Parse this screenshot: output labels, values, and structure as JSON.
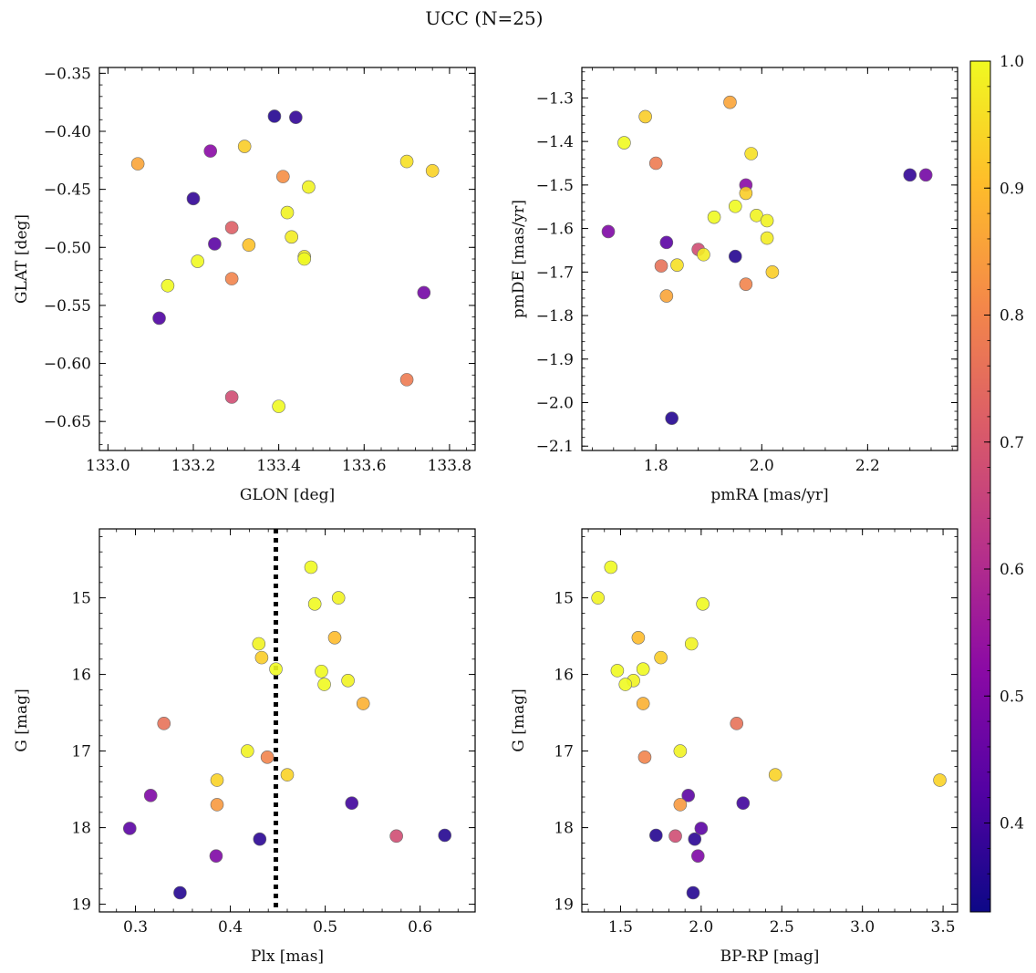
{
  "figure": {
    "title": "UCC (N=25)"
  },
  "colorbar": {
    "min": 0.33,
    "max": 1.0,
    "ticks": [
      0.4,
      0.5,
      0.6,
      0.7,
      0.8,
      0.9,
      1.0
    ],
    "tick_labels": [
      "0.4",
      "0.5",
      "0.6",
      "0.7",
      "0.8",
      "0.9",
      "1.0"
    ],
    "colormap": "plasma",
    "colormap_stops": [
      "#0d0887",
      "#5302a3",
      "#8b0aa5",
      "#b83289",
      "#db5c68",
      "#f48849",
      "#febd2a",
      "#f0f921"
    ]
  },
  "chart_data": [
    {
      "type": "scatter",
      "panel": "top-left",
      "xlabel": "GLON [deg]",
      "ylabel": "GLAT [deg]",
      "xlim": [
        132.98,
        133.86
      ],
      "ylim": [
        -0.675,
        -0.345
      ],
      "y_inverted": false,
      "xticks": [
        133.0,
        133.2,
        133.4,
        133.6,
        133.8
      ],
      "xtick_labels": [
        "133.0",
        "133.2",
        "133.4",
        "133.6",
        "133.8"
      ],
      "yticks": [
        -0.35,
        -0.4,
        -0.45,
        -0.5,
        -0.55,
        -0.6,
        -0.65
      ],
      "ytick_labels": [
        "−0.35",
        "−0.40",
        "−0.45",
        "−0.50",
        "−0.55",
        "−0.60",
        "−0.65"
      ],
      "points": [
        {
          "x": 133.39,
          "y": -0.387,
          "c": 0.36
        },
        {
          "x": 133.44,
          "y": -0.388,
          "c": 0.38
        },
        {
          "x": 133.24,
          "y": -0.417,
          "c": 0.52
        },
        {
          "x": 133.32,
          "y": -0.413,
          "c": 0.93
        },
        {
          "x": 133.07,
          "y": -0.428,
          "c": 0.86
        },
        {
          "x": 133.7,
          "y": -0.426,
          "c": 0.96
        },
        {
          "x": 133.76,
          "y": -0.434,
          "c": 0.94
        },
        {
          "x": 133.41,
          "y": -0.439,
          "c": 0.82
        },
        {
          "x": 133.47,
          "y": -0.448,
          "c": 0.99
        },
        {
          "x": 133.2,
          "y": -0.458,
          "c": 0.38
        },
        {
          "x": 133.42,
          "y": -0.47,
          "c": 0.99
        },
        {
          "x": 133.29,
          "y": -0.483,
          "c": 0.72
        },
        {
          "x": 133.43,
          "y": -0.491,
          "c": 0.98
        },
        {
          "x": 133.25,
          "y": -0.497,
          "c": 0.44
        },
        {
          "x": 133.33,
          "y": -0.498,
          "c": 0.91
        },
        {
          "x": 133.46,
          "y": -0.508,
          "c": 0.98
        },
        {
          "x": 133.46,
          "y": -0.51,
          "c": 1.0
        },
        {
          "x": 133.21,
          "y": -0.512,
          "c": 1.0
        },
        {
          "x": 133.29,
          "y": -0.527,
          "c": 0.8
        },
        {
          "x": 133.14,
          "y": -0.533,
          "c": 1.0
        },
        {
          "x": 133.74,
          "y": -0.539,
          "c": 0.48
        },
        {
          "x": 133.12,
          "y": -0.561,
          "c": 0.42
        },
        {
          "x": 133.7,
          "y": -0.614,
          "c": 0.78
        },
        {
          "x": 133.29,
          "y": -0.629,
          "c": 0.68
        },
        {
          "x": 133.4,
          "y": -0.637,
          "c": 1.0
        }
      ]
    },
    {
      "type": "scatter",
      "panel": "top-right",
      "xlabel": "pmRA [mas/yr]",
      "ylabel": "pmDE [mas/yr]",
      "xlim": [
        1.66,
        2.37
      ],
      "ylim": [
        -2.11,
        -1.23
      ],
      "y_inverted": false,
      "xticks": [
        1.8,
        2.0,
        2.2
      ],
      "xtick_labels": [
        "1.8",
        "2.0",
        "2.2"
      ],
      "yticks": [
        -1.3,
        -1.4,
        -1.5,
        -1.6,
        -1.7,
        -1.8,
        -1.9,
        -2.0,
        -2.1
      ],
      "ytick_labels": [
        "−1.3",
        "−1.4",
        "−1.5",
        "−1.6",
        "−1.7",
        "−1.8",
        "−1.9",
        "−2.0",
        "−2.1"
      ],
      "points": [
        {
          "x": 1.94,
          "y": -1.31,
          "c": 0.86
        },
        {
          "x": 1.78,
          "y": -1.343,
          "c": 0.93
        },
        {
          "x": 1.74,
          "y": -1.403,
          "c": 1.0
        },
        {
          "x": 1.98,
          "y": -1.428,
          "c": 0.96
        },
        {
          "x": 1.8,
          "y": -1.45,
          "c": 0.78
        },
        {
          "x": 2.28,
          "y": -1.477,
          "c": 0.38
        },
        {
          "x": 2.31,
          "y": -1.477,
          "c": 0.48
        },
        {
          "x": 1.97,
          "y": -1.5,
          "c": 0.52
        },
        {
          "x": 1.97,
          "y": -1.519,
          "c": 0.93
        },
        {
          "x": 1.95,
          "y": -1.549,
          "c": 1.0
        },
        {
          "x": 1.91,
          "y": -1.574,
          "c": 1.0
        },
        {
          "x": 1.99,
          "y": -1.57,
          "c": 0.99
        },
        {
          "x": 2.01,
          "y": -1.582,
          "c": 0.99
        },
        {
          "x": 1.71,
          "y": -1.607,
          "c": 0.5
        },
        {
          "x": 2.01,
          "y": -1.622,
          "c": 0.98
        },
        {
          "x": 1.82,
          "y": -1.632,
          "c": 0.44
        },
        {
          "x": 1.88,
          "y": -1.648,
          "c": 0.68
        },
        {
          "x": 1.89,
          "y": -1.66,
          "c": 0.98
        },
        {
          "x": 1.95,
          "y": -1.664,
          "c": 0.36
        },
        {
          "x": 1.81,
          "y": -1.686,
          "c": 0.76
        },
        {
          "x": 1.84,
          "y": -1.684,
          "c": 0.96
        },
        {
          "x": 2.02,
          "y": -1.7,
          "c": 0.93
        },
        {
          "x": 1.97,
          "y": -1.728,
          "c": 0.8
        },
        {
          "x": 1.82,
          "y": -1.755,
          "c": 0.86
        },
        {
          "x": 1.83,
          "y": -2.036,
          "c": 0.36
        }
      ]
    },
    {
      "type": "scatter",
      "panel": "bottom-left",
      "xlabel": "Plx [mas]",
      "ylabel": "G [mag]",
      "xlim": [
        0.262,
        0.658
      ],
      "ylim": [
        19.1,
        14.1
      ],
      "y_inverted": true,
      "xticks": [
        0.3,
        0.4,
        0.5,
        0.6
      ],
      "xtick_labels": [
        "0.3",
        "0.4",
        "0.5",
        "0.6"
      ],
      "yticks": [
        15,
        16,
        17,
        18,
        19
      ],
      "ytick_labels": [
        "15",
        "16",
        "17",
        "18",
        "19"
      ],
      "vline": {
        "x": 0.448,
        "style": "dotted",
        "color": "#000000"
      },
      "points": [
        {
          "x": 0.485,
          "y": 14.6,
          "c": 1.0
        },
        {
          "x": 0.489,
          "y": 15.08,
          "c": 1.0
        },
        {
          "x": 0.514,
          "y": 15.0,
          "c": 0.99
        },
        {
          "x": 0.51,
          "y": 15.52,
          "c": 0.9
        },
        {
          "x": 0.43,
          "y": 15.6,
          "c": 0.99
        },
        {
          "x": 0.433,
          "y": 15.78,
          "c": 0.93
        },
        {
          "x": 0.448,
          "y": 15.93,
          "c": 1.0
        },
        {
          "x": 0.496,
          "y": 15.96,
          "c": 1.0
        },
        {
          "x": 0.524,
          "y": 16.08,
          "c": 0.99
        },
        {
          "x": 0.499,
          "y": 16.13,
          "c": 1.0
        },
        {
          "x": 0.54,
          "y": 16.38,
          "c": 0.88
        },
        {
          "x": 0.33,
          "y": 16.64,
          "c": 0.76
        },
        {
          "x": 0.418,
          "y": 17.0,
          "c": 0.99
        },
        {
          "x": 0.439,
          "y": 17.08,
          "c": 0.8
        },
        {
          "x": 0.46,
          "y": 17.31,
          "c": 0.94
        },
        {
          "x": 0.386,
          "y": 17.38,
          "c": 0.94
        },
        {
          "x": 0.316,
          "y": 17.58,
          "c": 0.5
        },
        {
          "x": 0.528,
          "y": 17.68,
          "c": 0.4
        },
        {
          "x": 0.386,
          "y": 17.7,
          "c": 0.84
        },
        {
          "x": 0.294,
          "y": 18.01,
          "c": 0.44
        },
        {
          "x": 0.626,
          "y": 18.1,
          "c": 0.36
        },
        {
          "x": 0.575,
          "y": 18.11,
          "c": 0.68
        },
        {
          "x": 0.431,
          "y": 18.15,
          "c": 0.37
        },
        {
          "x": 0.385,
          "y": 18.37,
          "c": 0.5
        },
        {
          "x": 0.347,
          "y": 18.85,
          "c": 0.36
        }
      ]
    },
    {
      "type": "scatter",
      "panel": "bottom-right",
      "xlabel": "BP-RP [mag]",
      "ylabel": "G [mag]",
      "xlim": [
        1.26,
        3.59
      ],
      "ylim": [
        19.1,
        14.1
      ],
      "y_inverted": true,
      "xticks": [
        1.5,
        2.0,
        2.5,
        3.0,
        3.5
      ],
      "xtick_labels": [
        "1.5",
        "2.0",
        "2.5",
        "3.0",
        "3.5"
      ],
      "yticks": [
        15,
        16,
        17,
        18,
        19
      ],
      "ytick_labels": [
        "15",
        "16",
        "17",
        "18",
        "19"
      ],
      "points": [
        {
          "x": 1.44,
          "y": 14.6,
          "c": 1.0
        },
        {
          "x": 1.36,
          "y": 15.0,
          "c": 0.99
        },
        {
          "x": 2.01,
          "y": 15.08,
          "c": 1.0
        },
        {
          "x": 1.61,
          "y": 15.52,
          "c": 0.9
        },
        {
          "x": 1.94,
          "y": 15.6,
          "c": 0.99
        },
        {
          "x": 1.75,
          "y": 15.78,
          "c": 0.93
        },
        {
          "x": 1.48,
          "y": 15.95,
          "c": 1.0
        },
        {
          "x": 1.64,
          "y": 15.93,
          "c": 1.0
        },
        {
          "x": 1.58,
          "y": 16.08,
          "c": 0.99
        },
        {
          "x": 1.53,
          "y": 16.13,
          "c": 1.0
        },
        {
          "x": 1.64,
          "y": 16.38,
          "c": 0.88
        },
        {
          "x": 2.22,
          "y": 16.64,
          "c": 0.76
        },
        {
          "x": 1.87,
          "y": 17.0,
          "c": 0.99
        },
        {
          "x": 1.65,
          "y": 17.08,
          "c": 0.8
        },
        {
          "x": 2.46,
          "y": 17.31,
          "c": 0.94
        },
        {
          "x": 3.48,
          "y": 17.38,
          "c": 0.94
        },
        {
          "x": 1.92,
          "y": 17.58,
          "c": 0.44
        },
        {
          "x": 2.26,
          "y": 17.68,
          "c": 0.4
        },
        {
          "x": 1.87,
          "y": 17.7,
          "c": 0.84
        },
        {
          "x": 2.0,
          "y": 18.01,
          "c": 0.44
        },
        {
          "x": 1.72,
          "y": 18.1,
          "c": 0.36
        },
        {
          "x": 1.84,
          "y": 18.11,
          "c": 0.68
        },
        {
          "x": 1.96,
          "y": 18.15,
          "c": 0.37
        },
        {
          "x": 1.98,
          "y": 18.37,
          "c": 0.5
        },
        {
          "x": 1.95,
          "y": 18.85,
          "c": 0.36
        }
      ]
    }
  ]
}
